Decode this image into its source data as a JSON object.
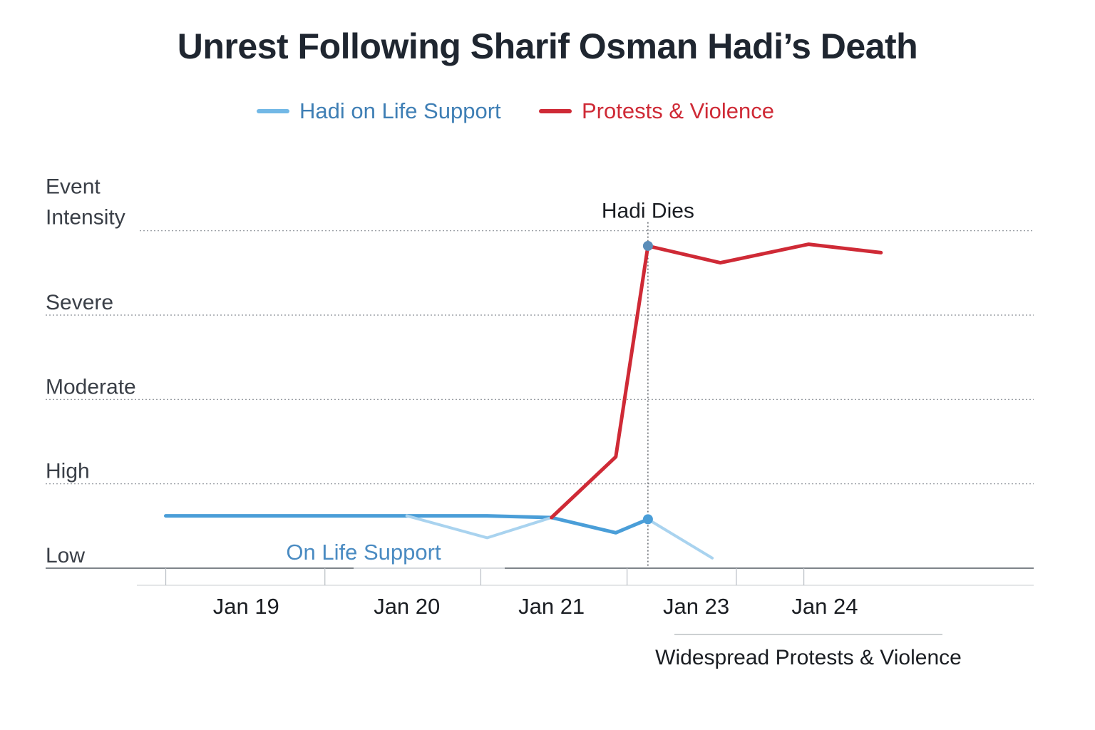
{
  "chart_data": {
    "type": "line",
    "title": "Unrest Following Sharif Osman Hadi’s Death",
    "ylabel": [
      "Event",
      "Intensity"
    ],
    "y_levels": [
      "Low",
      "High",
      "Moderate",
      "Severe"
    ],
    "ylim": [
      0,
      4.2
    ],
    "xlabel": "",
    "x_ticks": [
      {
        "label": "Jan 19",
        "x": 19.5
      },
      {
        "label": "Jan 20",
        "x": 20.5
      },
      {
        "label": "Jan 21",
        "x": 21.4
      },
      {
        "label": "Jan 23",
        "x": 22.3
      },
      {
        "label": "Jan 24",
        "x": 23.1
      }
    ],
    "xlim": [
      18.9,
      24.4
    ],
    "legend": {
      "position": "top"
    },
    "series": [
      {
        "name": "Hadi on Life Support",
        "color": "#4a9ed8",
        "points": [
          [
            19.0,
            0.62
          ],
          [
            19.5,
            0.62
          ],
          [
            20.0,
            0.62
          ],
          [
            20.5,
            0.62
          ],
          [
            21.0,
            0.62
          ],
          [
            21.4,
            0.6
          ],
          [
            21.8,
            0.42
          ],
          [
            22.0,
            0.58
          ]
        ]
      },
      {
        "name": "Hadi on Life Support (faded)",
        "color": "#a9d3ef",
        "points": [
          [
            20.5,
            0.62
          ],
          [
            21.0,
            0.36
          ],
          [
            21.4,
            0.6
          ]
        ]
      },
      {
        "name": "Hadi on Life Support (ends)",
        "color": "#a9d3ef",
        "points": [
          [
            22.0,
            0.58
          ],
          [
            22.4,
            0.12
          ]
        ]
      },
      {
        "name": "Protests & Violence",
        "color": "#cf2a36",
        "points": [
          [
            21.4,
            0.6
          ],
          [
            21.8,
            1.32
          ],
          [
            22.0,
            3.82
          ],
          [
            22.45,
            3.62
          ],
          [
            23.0,
            3.84
          ],
          [
            23.45,
            3.74
          ]
        ]
      }
    ],
    "markers": [
      {
        "x": 22.0,
        "y": 3.82,
        "color": "#5b8db8"
      },
      {
        "x": 22.0,
        "y": 0.58,
        "color": "#4a9ed8"
      }
    ],
    "annotations": {
      "event": {
        "label": "Hadi Dies",
        "x": 22.0
      },
      "inline": {
        "label": "On Life Support"
      },
      "period": {
        "label": "Widespread Protests & Violence"
      }
    }
  },
  "legend_items": {
    "life_support": "Hadi on Life Support",
    "protests": "Protests & Violence"
  }
}
